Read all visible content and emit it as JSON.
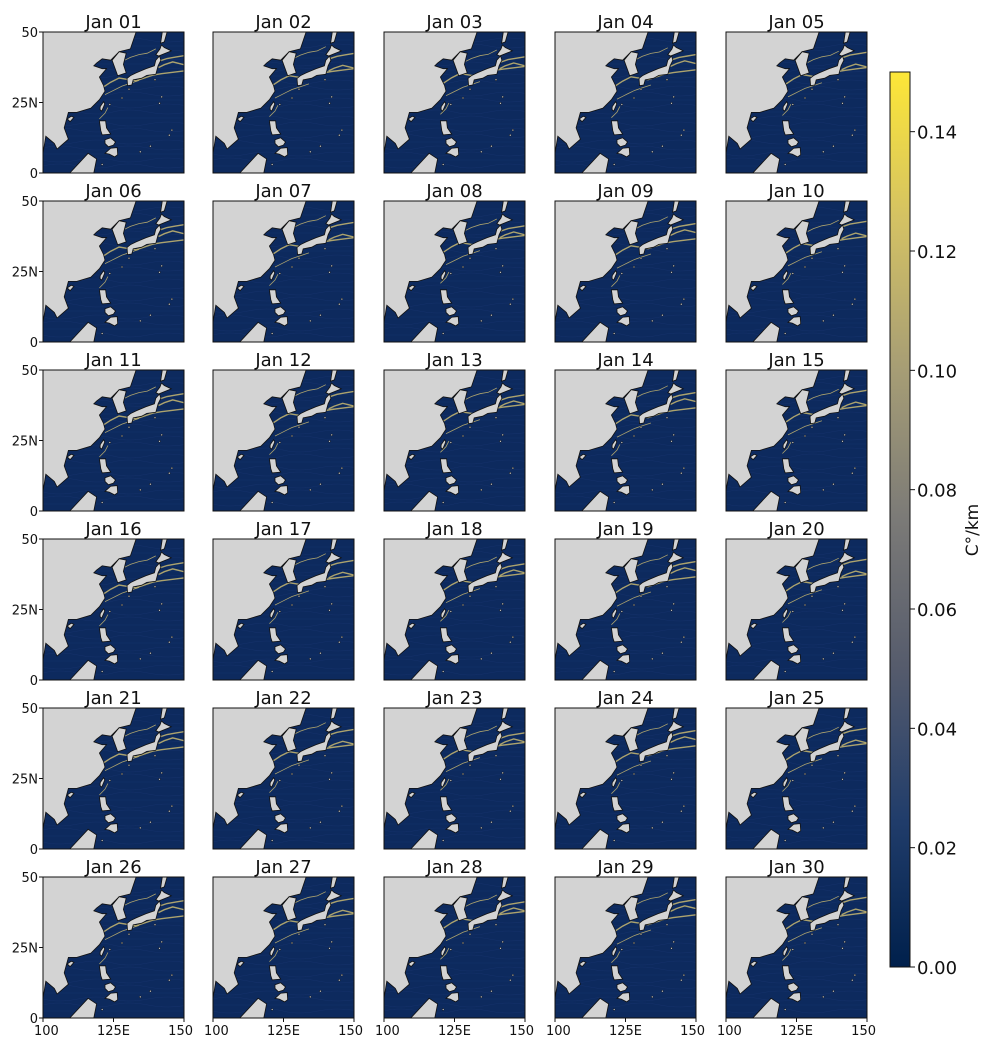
{
  "chart_data": {
    "type": "heatmap",
    "panel_titles": [
      "Jan 01",
      "Jan 02",
      "Jan 03",
      "Jan 04",
      "Jan 05",
      "Jan 06",
      "Jan 07",
      "Jan 08",
      "Jan 09",
      "Jan 10",
      "Jan 11",
      "Jan 12",
      "Jan 13",
      "Jan 14",
      "Jan 15",
      "Jan 16",
      "Jan 17",
      "Jan 18",
      "Jan 19",
      "Jan 20",
      "Jan 21",
      "Jan 22",
      "Jan 23",
      "Jan 24",
      "Jan 25",
      "Jan 26",
      "Jan 27",
      "Jan 28",
      "Jan 29",
      "Jan 30"
    ],
    "layout": {
      "rows": 6,
      "cols": 5
    },
    "x_ticks": [
      "100",
      "125E",
      "150"
    ],
    "x_tick_values": [
      100,
      125,
      150
    ],
    "xlim": [
      100,
      150
    ],
    "y_ticks": [
      "0",
      "25N",
      "50"
    ],
    "y_tick_values": [
      0,
      25,
      50
    ],
    "ylim": [
      0,
      50
    ],
    "colorbar": {
      "label": "C°/km",
      "range": [
        0.0,
        0.15
      ],
      "ticks": [
        "0.00",
        "0.02",
        "0.04",
        "0.06",
        "0.08",
        "0.10",
        "0.12",
        "0.14"
      ],
      "tick_values": [
        0.0,
        0.02,
        0.04,
        0.06,
        0.08,
        0.1,
        0.12,
        0.14
      ],
      "colormap": "cividis",
      "colors": [
        "#00204c",
        "#213d6b",
        "#555b6c",
        "#7b7a77",
        "#a69d75",
        "#d3c164",
        "#fde737"
      ]
    },
    "land_color": "#d3d3d3",
    "ocean_color": "#0d2a5e",
    "front_color": "#c9b870"
  }
}
